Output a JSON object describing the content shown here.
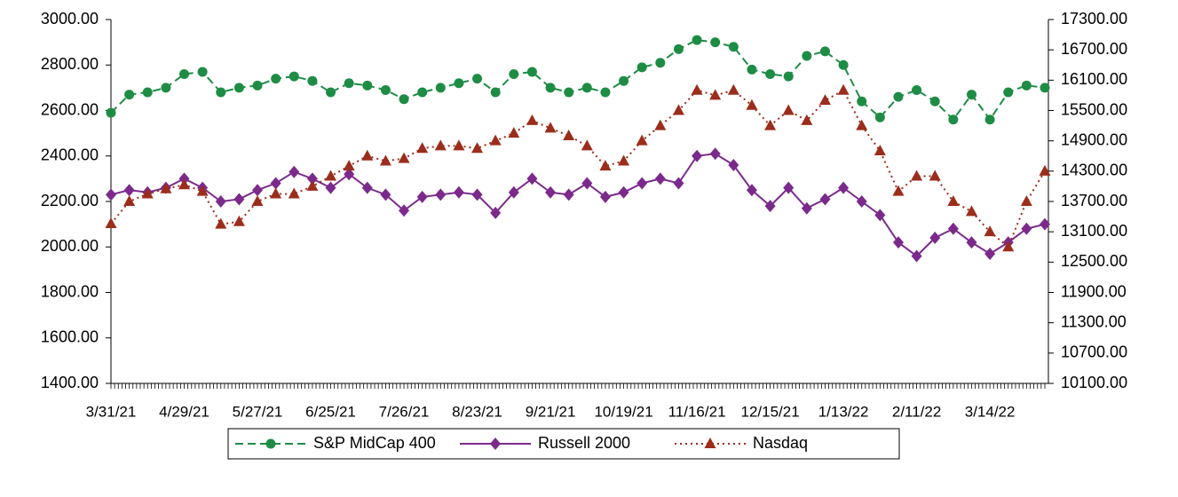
{
  "chart_data": {
    "type": "line",
    "categories": [
      "3/31/21",
      null,
      null,
      null,
      "4/29/21",
      null,
      null,
      null,
      "5/27/21",
      null,
      null,
      null,
      "6/25/21",
      null,
      null,
      null,
      "7/26/21",
      null,
      null,
      null,
      "8/23/21",
      null,
      null,
      null,
      "9/21/21",
      null,
      null,
      null,
      "10/19/21",
      null,
      null,
      null,
      "11/16/21",
      null,
      null,
      null,
      "12/15/21",
      null,
      null,
      null,
      "1/13/22",
      null,
      null,
      null,
      "2/11/22",
      null,
      null,
      null,
      "3/14/22",
      null,
      null,
      null
    ],
    "series": [
      {
        "name": "S&P MidCap 400",
        "color": "#1e8c45",
        "line_style": "dashed",
        "marker": "circle",
        "values": [
          2590,
          2670,
          2680,
          2700,
          2760,
          2770,
          2680,
          2700,
          2710,
          2740,
          2750,
          2730,
          2680,
          2720,
          2710,
          2690,
          2650,
          2680,
          2700,
          2720,
          2740,
          2680,
          2760,
          2770,
          2700,
          2680,
          2700,
          2680,
          2730,
          2790,
          2810,
          2870,
          2910,
          2900,
          2880,
          2780,
          2760,
          2750,
          2840,
          2860,
          2800,
          2640,
          2570,
          2660,
          2690,
          2640,
          2560,
          2670,
          2560,
          2680,
          2710,
          2700
        ]
      },
      {
        "name": "Russell 2000",
        "color": "#7b2a8c",
        "line_style": "solid",
        "marker": "diamond",
        "values": [
          2230,
          2250,
          2240,
          2260,
          2300,
          2260,
          2200,
          2210,
          2250,
          2280,
          2330,
          2300,
          2260,
          2320,
          2260,
          2230,
          2160,
          2220,
          2230,
          2240,
          2230,
          2150,
          2240,
          2300,
          2240,
          2230,
          2280,
          2220,
          2240,
          2280,
          2300,
          2280,
          2400,
          2410,
          2360,
          2250,
          2180,
          2260,
          2170,
          2210,
          2260,
          2200,
          2140,
          2020,
          1960,
          2040,
          2080,
          2020,
          1970,
          2020,
          2080,
          2100
        ]
      },
      {
        "name": "Nasdaq",
        "color": "#9b2d1c",
        "line_style": "dotted",
        "marker": "triangle",
        "axis": "y2",
        "values": [
          13260,
          13700,
          13850,
          13950,
          14030,
          13900,
          13250,
          13300,
          13700,
          13850,
          13850,
          14000,
          14200,
          14400,
          14600,
          14500,
          14550,
          14750,
          14800,
          14800,
          14750,
          14900,
          15050,
          15300,
          15150,
          15000,
          14800,
          14400,
          14500,
          14900,
          15200,
          15500,
          15900,
          15800,
          15900,
          15600,
          15200,
          15500,
          15300,
          15700,
          15900,
          15200,
          14700,
          13900,
          14200,
          14200,
          13700,
          13500,
          13100,
          12800,
          13700,
          14300
        ]
      }
    ],
    "ylim": [
      1400,
      3000
    ],
    "yticks": [
      {
        "value": 1400,
        "label": "1400.00"
      },
      {
        "value": 1600,
        "label": "1600.00"
      },
      {
        "value": 1800,
        "label": "1800.00"
      },
      {
        "value": 2000,
        "label": "2000.00"
      },
      {
        "value": 2200,
        "label": "2200.00"
      },
      {
        "value": 2400,
        "label": "2400.00"
      },
      {
        "value": 2600,
        "label": "2600.00"
      },
      {
        "value": 2800,
        "label": "2800.00"
      },
      {
        "value": 3000,
        "label": "3000.00"
      }
    ],
    "y2lim": [
      10100,
      17300
    ],
    "y2ticks": [
      {
        "value": 10100,
        "label": "10100.00"
      },
      {
        "value": 10700,
        "label": "10700.00"
      },
      {
        "value": 11300,
        "label": "11300.00"
      },
      {
        "value": 11900,
        "label": "11900.00"
      },
      {
        "value": 12500,
        "label": "12500.00"
      },
      {
        "value": 13100,
        "label": "13100.00"
      },
      {
        "value": 13700,
        "label": "13700.00"
      },
      {
        "value": 14300,
        "label": "14300.00"
      },
      {
        "value": 14900,
        "label": "14900.00"
      },
      {
        "value": 15500,
        "label": "15500.00"
      },
      {
        "value": 16100,
        "label": "16100.00"
      },
      {
        "value": 16700,
        "label": "16700.00"
      },
      {
        "value": 17300,
        "label": "17300.00"
      }
    ],
    "grid": false,
    "legend": "bottom"
  }
}
